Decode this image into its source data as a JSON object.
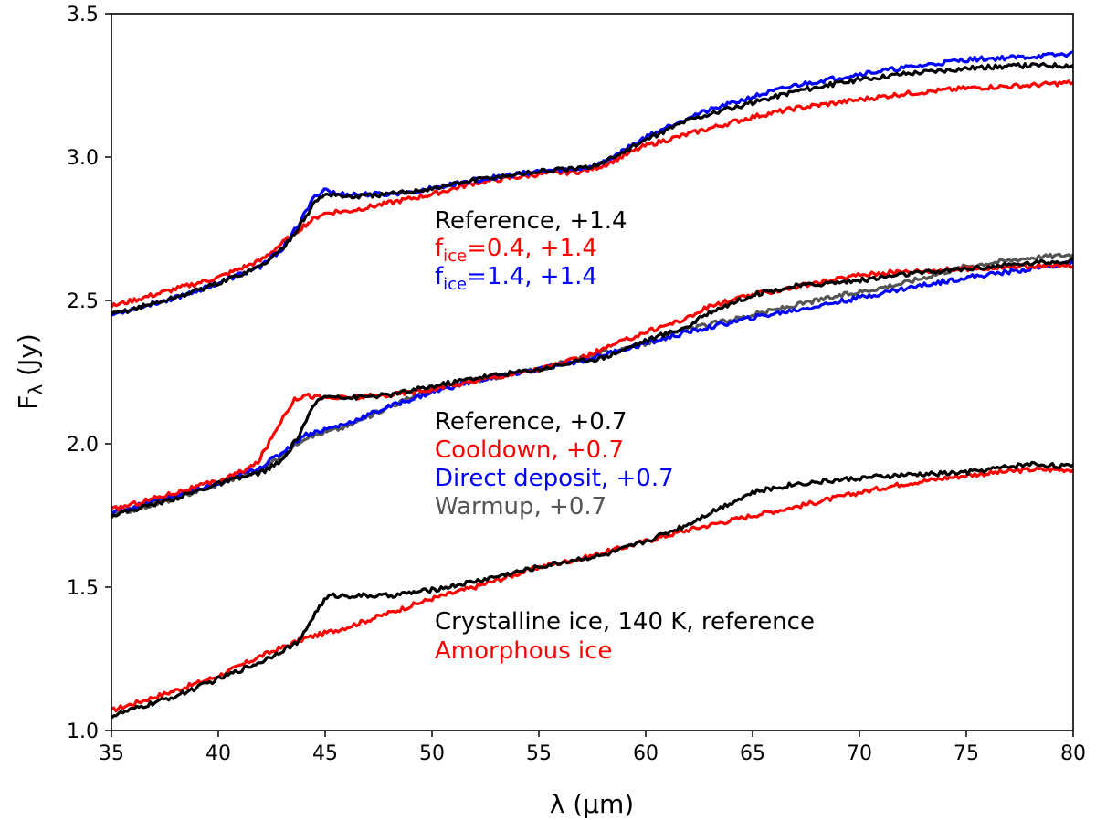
{
  "chart_data": {
    "type": "line",
    "xlabel": "λ (μm)",
    "ylabel": {
      "main": "F",
      "sub": "λ",
      "rest": " (Jy)"
    },
    "xlim": [
      35,
      80
    ],
    "ylim": [
      1.0,
      3.5
    ],
    "xticks": [
      35,
      40,
      45,
      50,
      55,
      60,
      65,
      70,
      75,
      80
    ],
    "yticks": [
      1.0,
      1.5,
      2.0,
      2.5,
      3.0,
      3.5
    ],
    "xtick_labels": [
      "35",
      "40",
      "45",
      "50",
      "55",
      "60",
      "65",
      "70",
      "75",
      "80"
    ],
    "ytick_labels": [
      "1.0",
      "1.5",
      "2.0",
      "2.5",
      "3.0",
      "3.5"
    ],
    "grid": false,
    "colors": {
      "black": "#000000",
      "red": "#ff0000",
      "blue": "#0000ff",
      "gray": "#555555"
    },
    "series": [
      {
        "group": "bottom",
        "color": "#ff0000",
        "x": [
          35,
          38,
          40,
          42,
          43,
          44,
          45,
          46,
          48,
          50,
          52,
          55,
          57,
          60,
          62,
          65,
          67,
          70,
          72,
          75,
          78,
          80
        ],
        "y": [
          1.07,
          1.14,
          1.19,
          1.26,
          1.29,
          1.32,
          1.34,
          1.36,
          1.41,
          1.46,
          1.5,
          1.57,
          1.6,
          1.66,
          1.7,
          1.75,
          1.78,
          1.83,
          1.86,
          1.89,
          1.91,
          1.91
        ]
      },
      {
        "group": "bottom",
        "color": "#000000",
        "x": [
          35,
          38,
          40,
          42,
          43,
          43.8,
          44.3,
          44.8,
          45.2,
          46,
          48,
          50,
          52,
          55,
          57,
          58,
          60,
          62,
          63,
          65,
          67,
          70,
          72,
          75,
          78,
          80
        ],
        "y": [
          1.05,
          1.12,
          1.18,
          1.24,
          1.28,
          1.31,
          1.38,
          1.44,
          1.47,
          1.47,
          1.47,
          1.49,
          1.52,
          1.57,
          1.6,
          1.61,
          1.66,
          1.72,
          1.76,
          1.83,
          1.86,
          1.88,
          1.89,
          1.9,
          1.93,
          1.92
        ]
      },
      {
        "group": "middle",
        "color": "#555555",
        "x": [
          35,
          38,
          40,
          42,
          43,
          44,
          45,
          46,
          48,
          50,
          52,
          55,
          57,
          60,
          62,
          65,
          68,
          70,
          72,
          75,
          78,
          80
        ],
        "y": [
          1.75,
          1.81,
          1.86,
          1.91,
          1.96,
          2.02,
          2.04,
          2.06,
          2.13,
          2.19,
          2.22,
          2.26,
          2.3,
          2.35,
          2.4,
          2.45,
          2.5,
          2.53,
          2.56,
          2.62,
          2.65,
          2.66
        ]
      },
      {
        "group": "middle",
        "color": "#0000ff",
        "x": [
          35,
          38,
          40,
          42,
          43,
          44,
          45,
          46,
          48,
          50,
          52,
          55,
          57,
          60,
          62,
          65,
          68,
          70,
          72,
          75,
          78,
          80
        ],
        "y": [
          1.76,
          1.82,
          1.86,
          1.92,
          1.97,
          2.03,
          2.05,
          2.07,
          2.13,
          2.18,
          2.22,
          2.26,
          2.29,
          2.35,
          2.39,
          2.44,
          2.48,
          2.51,
          2.54,
          2.58,
          2.61,
          2.63
        ]
      },
      {
        "group": "middle",
        "color": "#ff0000",
        "x": [
          35,
          38,
          40,
          41,
          41.8,
          42.5,
          43,
          43.5,
          44,
          45,
          46,
          48,
          50,
          52,
          55,
          57,
          58,
          60,
          62,
          63,
          65,
          68,
          70,
          72,
          75,
          78,
          80
        ],
        "y": [
          1.77,
          1.83,
          1.87,
          1.9,
          1.93,
          2.02,
          2.09,
          2.15,
          2.17,
          2.16,
          2.16,
          2.17,
          2.19,
          2.22,
          2.26,
          2.3,
          2.33,
          2.39,
          2.44,
          2.48,
          2.52,
          2.56,
          2.59,
          2.6,
          2.61,
          2.62,
          2.62
        ]
      },
      {
        "group": "middle",
        "color": "#000000",
        "x": [
          35,
          38,
          40,
          42,
          43,
          43.7,
          44.3,
          44.8,
          45.5,
          46,
          48,
          50,
          52,
          55,
          57,
          58,
          60,
          62,
          63,
          65,
          67,
          70,
          72,
          75,
          78,
          80
        ],
        "y": [
          1.75,
          1.81,
          1.86,
          1.9,
          1.94,
          2.02,
          2.11,
          2.16,
          2.17,
          2.16,
          2.17,
          2.2,
          2.23,
          2.26,
          2.29,
          2.3,
          2.36,
          2.41,
          2.46,
          2.52,
          2.55,
          2.57,
          2.59,
          2.61,
          2.63,
          2.64
        ]
      },
      {
        "group": "top",
        "color": "#ff0000",
        "x": [
          35,
          38,
          40,
          42,
          43,
          44,
          44.8,
          45.5,
          46,
          48,
          50,
          52,
          55,
          57,
          58,
          60,
          62,
          65,
          67,
          70,
          72,
          75,
          78,
          80
        ],
        "y": [
          2.48,
          2.54,
          2.58,
          2.64,
          2.7,
          2.76,
          2.8,
          2.81,
          2.81,
          2.84,
          2.87,
          2.91,
          2.94,
          2.95,
          2.97,
          3.04,
          3.08,
          3.14,
          3.17,
          3.2,
          3.22,
          3.24,
          3.25,
          3.26
        ]
      },
      {
        "group": "top",
        "color": "#0000ff",
        "x": [
          35,
          38,
          40,
          42,
          43,
          43.8,
          44.5,
          45,
          45.5,
          46,
          48,
          50,
          52,
          55,
          57,
          58,
          60,
          62,
          65,
          67,
          70,
          72,
          75,
          78,
          80
        ],
        "y": [
          2.45,
          2.51,
          2.56,
          2.62,
          2.68,
          2.77,
          2.86,
          2.89,
          2.87,
          2.87,
          2.87,
          2.89,
          2.92,
          2.95,
          2.96,
          2.98,
          3.07,
          3.14,
          3.21,
          3.25,
          3.29,
          3.31,
          3.34,
          3.35,
          3.36
        ]
      },
      {
        "group": "top",
        "color": "#000000",
        "x": [
          35,
          38,
          40,
          42,
          43,
          43.8,
          44.5,
          45,
          45.5,
          46,
          48,
          50,
          52,
          55,
          57,
          58,
          60,
          62,
          65,
          67,
          70,
          72,
          75,
          78,
          80
        ],
        "y": [
          2.45,
          2.51,
          2.56,
          2.62,
          2.68,
          2.76,
          2.84,
          2.87,
          2.87,
          2.86,
          2.87,
          2.89,
          2.92,
          2.95,
          2.96,
          2.98,
          3.06,
          3.13,
          3.19,
          3.23,
          3.27,
          3.29,
          3.31,
          3.32,
          3.32
        ]
      }
    ]
  },
  "annotations": {
    "top": [
      {
        "text": "Reference, +1.4",
        "color": "#000000"
      },
      {
        "main": "f",
        "sub": "ice",
        "rest": "=0.4, +1.4",
        "color": "#ff0000"
      },
      {
        "main": "f",
        "sub": "ice",
        "rest": "=1.4, +1.4",
        "color": "#0000ff"
      }
    ],
    "middle": [
      {
        "text": "Reference, +0.7",
        "color": "#000000"
      },
      {
        "text": "Cooldown, +0.7",
        "color": "#ff0000"
      },
      {
        "text": "Direct deposit, +0.7",
        "color": "#0000ff"
      },
      {
        "text": "Warmup, +0.7",
        "color": "#555555"
      }
    ],
    "bottom": [
      {
        "text": "Crystalline ice, 140 K, reference",
        "color": "#000000"
      },
      {
        "text": "Amorphous ice",
        "color": "#ff0000"
      }
    ]
  }
}
